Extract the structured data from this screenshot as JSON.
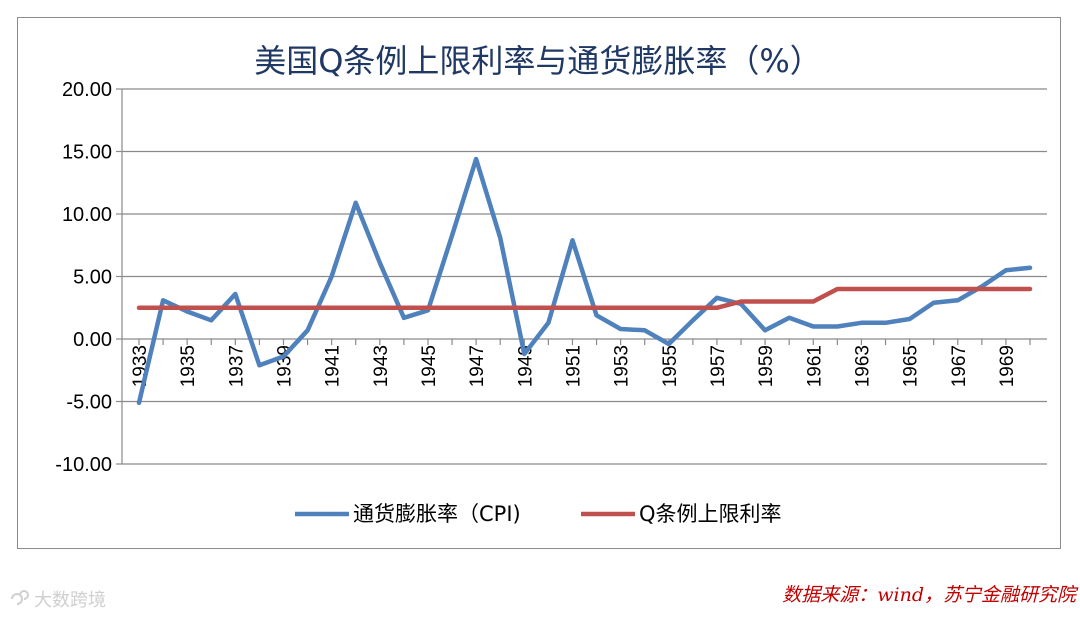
{
  "chart_data": {
    "type": "line",
    "title": "美国Q条例上限利率与通货膨胀率（%）",
    "xlabel": "",
    "ylabel": "",
    "ylim": [
      -10,
      20
    ],
    "yticks": [
      -10,
      -5,
      0,
      5,
      10,
      15,
      20
    ],
    "ytick_labels": [
      "-10.00",
      "-5.00",
      "0.00",
      "5.00",
      "10.00",
      "15.00",
      "20.00"
    ],
    "x": [
      1933,
      1934,
      1935,
      1936,
      1937,
      1938,
      1939,
      1940,
      1941,
      1942,
      1943,
      1944,
      1945,
      1946,
      1947,
      1948,
      1949,
      1950,
      1951,
      1952,
      1953,
      1954,
      1955,
      1956,
      1957,
      1958,
      1959,
      1960,
      1961,
      1962,
      1963,
      1964,
      1965,
      1966,
      1967,
      1968,
      1969,
      1970
    ],
    "xtick_labels": [
      "1933",
      "1935",
      "1937",
      "1939",
      "1941",
      "1943",
      "1945",
      "1947",
      "1949",
      "1951",
      "1953",
      "1955",
      "1957",
      "1959",
      "1961",
      "1963",
      "1965",
      "1967",
      "1969"
    ],
    "grid": "horizontal",
    "legend_position": "bottom",
    "series": [
      {
        "name": "通货膨胀率（CPI)",
        "color": "#4f81bd",
        "values": [
          -5.1,
          3.1,
          2.2,
          1.5,
          3.6,
          -2.1,
          -1.4,
          0.7,
          5.0,
          10.9,
          6.1,
          1.7,
          2.3,
          8.3,
          14.4,
          8.1,
          -1.2,
          1.3,
          7.9,
          1.9,
          0.8,
          0.7,
          -0.4,
          1.5,
          3.3,
          2.8,
          0.7,
          1.7,
          1.0,
          1.0,
          1.3,
          1.3,
          1.6,
          2.9,
          3.1,
          4.2,
          5.5,
          5.7
        ]
      },
      {
        "name": "Q条例上限利率",
        "color": "#c0504d",
        "values": [
          2.5,
          2.5,
          2.5,
          2.5,
          2.5,
          2.5,
          2.5,
          2.5,
          2.5,
          2.5,
          2.5,
          2.5,
          2.5,
          2.5,
          2.5,
          2.5,
          2.5,
          2.5,
          2.5,
          2.5,
          2.5,
          2.5,
          2.5,
          2.5,
          2.5,
          3.0,
          3.0,
          3.0,
          3.0,
          4.0,
          4.0,
          4.0,
          4.0,
          4.0,
          4.0,
          4.0,
          4.0,
          4.0
        ]
      }
    ]
  },
  "footer": {
    "source": "数据来源：wind，苏宁金融研究院",
    "watermark": "大数跨境"
  }
}
